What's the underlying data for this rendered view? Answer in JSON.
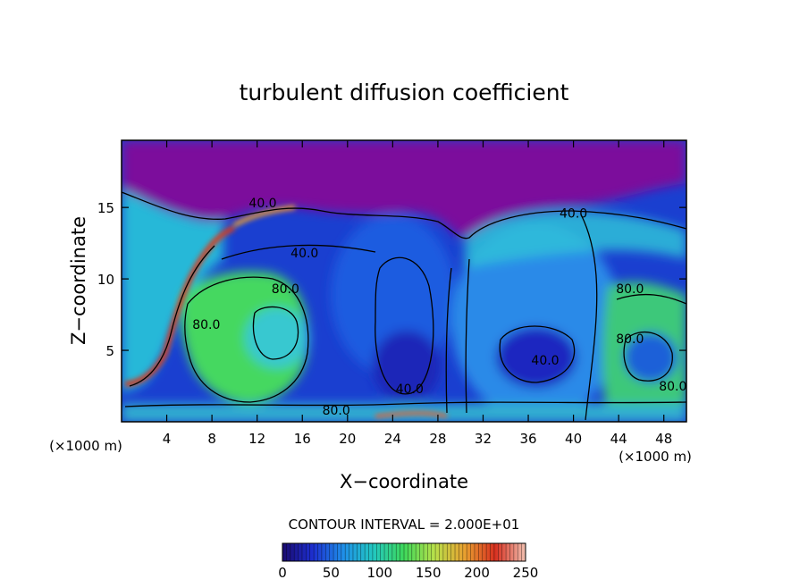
{
  "chart_data": {
    "type": "heatmap",
    "title": "turbulent diffusion coefficient",
    "xlabel": "X−coordinate",
    "ylabel": "Z−coordinate",
    "x_unit_left": "(×1000 m)",
    "x_unit_right": "(×1000 m)",
    "xlim": [
      0,
      50
    ],
    "ylim": [
      0,
      19.7
    ],
    "x_ticks": [
      4,
      8,
      12,
      16,
      20,
      24,
      28,
      32,
      36,
      40,
      44,
      48
    ],
    "y_ticks": [
      5,
      10,
      15
    ],
    "contour_interval_text": "CONTOUR INTERVAL = 2.000E+01",
    "contour_labels": [
      {
        "text": "40.0",
        "x": 12.5,
        "z": 15.0
      },
      {
        "text": "40.0",
        "x": 40.0,
        "z": 14.3
      },
      {
        "text": "80.0",
        "x": 14.5,
        "z": 9.0
      },
      {
        "text": "80.0",
        "x": 45.0,
        "z": 9.0
      },
      {
        "text": "40.0",
        "x": 37.5,
        "z": 4.0
      },
      {
        "text": "40.0",
        "x": 16.2,
        "z": 11.5
      },
      {
        "text": "40.0",
        "x": 25.5,
        "z": 2.0
      },
      {
        "text": "80.0",
        "x": 19.0,
        "z": 0.5
      },
      {
        "text": "80.0",
        "x": 48.8,
        "z": 2.2
      },
      {
        "text": "80.0",
        "x": 45.0,
        "z": 5.5
      },
      {
        "text": "80.0",
        "x": 7.5,
        "z": 6.5
      }
    ],
    "colorbar": {
      "range": [
        0,
        250
      ],
      "tick_labels": [
        "0",
        "50",
        "100",
        "150",
        "200",
        "250"
      ],
      "colors": [
        "#1a0a6e",
        "#1d2fd0",
        "#1f8fe8",
        "#22c8c0",
        "#3ed85a",
        "#b8e04a",
        "#e8a030",
        "#d83020",
        "#f0c0b0"
      ]
    },
    "colors": {
      "background_top": "#7b119c",
      "low": "#1a2fc8",
      "mid": "#2aa8e8",
      "high": "#3ed860",
      "peak": "#d83a1c"
    }
  }
}
